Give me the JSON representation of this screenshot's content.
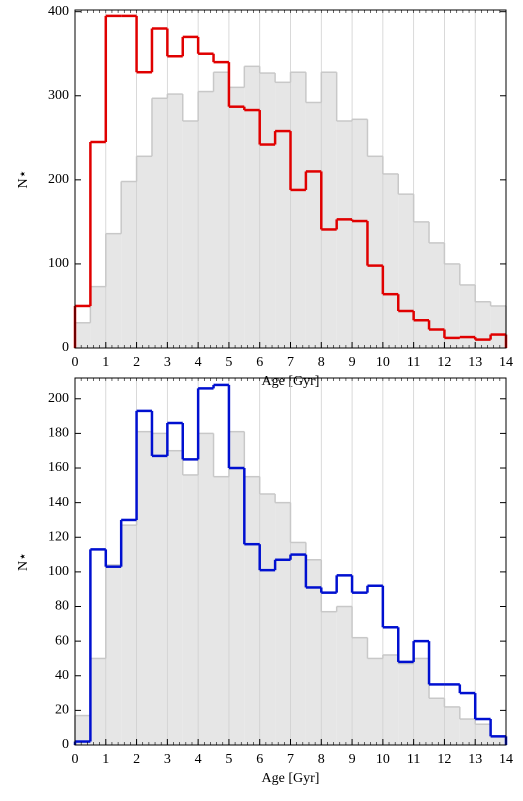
{
  "chart_data": [
    {
      "type": "histogram",
      "xlabel": "Age [Gyr]",
      "ylabel": "N⋆",
      "bins": [
        0,
        0.5,
        1,
        1.5,
        2,
        2.5,
        3,
        3.5,
        4,
        4.5,
        5,
        5.5,
        6,
        6.5,
        7,
        7.5,
        8,
        8.5,
        9,
        9.5,
        10,
        10.5,
        11,
        11.5,
        12,
        12.5,
        13,
        13.5,
        14
      ],
      "series": [
        {
          "style": "filled",
          "color": "#c8c8c8",
          "values": [
            30,
            73,
            136,
            198,
            228,
            297,
            302,
            270,
            305,
            328,
            310,
            335,
            327,
            316,
            328,
            292,
            328,
            270,
            272,
            228,
            207,
            183,
            150,
            125,
            100,
            75,
            55,
            50
          ]
        },
        {
          "style": "step",
          "color": "#e00000",
          "values": [
            50,
            245,
            395,
            395,
            328,
            380,
            347,
            370,
            350,
            340,
            287,
            283,
            242,
            258,
            188,
            210,
            141,
            153,
            151,
            98,
            64,
            44,
            33,
            22,
            12,
            13,
            10,
            16
          ]
        }
      ],
      "xlim": [
        0,
        14
      ],
      "xticks": [
        0,
        1,
        2,
        3,
        4,
        5,
        6,
        7,
        8,
        9,
        10,
        11,
        12,
        13,
        14
      ],
      "ylim": [
        0,
        402
      ],
      "yticks": [
        0,
        100,
        200,
        300,
        400
      ],
      "xgrid": true
    },
    {
      "type": "histogram",
      "xlabel": "Age [Gyr]",
      "ylabel": "N⋆",
      "bins": [
        0,
        0.5,
        1,
        1.5,
        2,
        2.5,
        3,
        3.5,
        4,
        4.5,
        5,
        5.5,
        6,
        6.5,
        7,
        7.5,
        8,
        8.5,
        9,
        9.5,
        10,
        10.5,
        11,
        11.5,
        12,
        12.5,
        13,
        13.5,
        14
      ],
      "series": [
        {
          "style": "filled",
          "color": "#c8c8c8",
          "values": [
            17,
            50,
            104,
            127,
            181,
            180,
            170,
            156,
            180,
            155,
            181,
            155,
            145,
            140,
            117,
            107,
            77,
            80,
            62,
            50,
            52,
            47,
            50,
            27,
            22,
            15,
            12,
            5
          ]
        },
        {
          "style": "step",
          "color": "#0010d0",
          "values": [
            2,
            113,
            103,
            130,
            193,
            167,
            186,
            165,
            206,
            208,
            160,
            116,
            101,
            107,
            110,
            91,
            88,
            98,
            88,
            92,
            68,
            48,
            60,
            35,
            35,
            30,
            15,
            5
          ]
        }
      ],
      "xlim": [
        0,
        14
      ],
      "xticks": [
        0,
        1,
        2,
        3,
        4,
        5,
        6,
        7,
        8,
        9,
        10,
        11,
        12,
        13,
        14
      ],
      "ylim": [
        0,
        212
      ],
      "yticks": [
        0,
        20,
        40,
        60,
        80,
        100,
        120,
        140,
        160,
        180,
        200
      ],
      "xgrid": true
    }
  ]
}
